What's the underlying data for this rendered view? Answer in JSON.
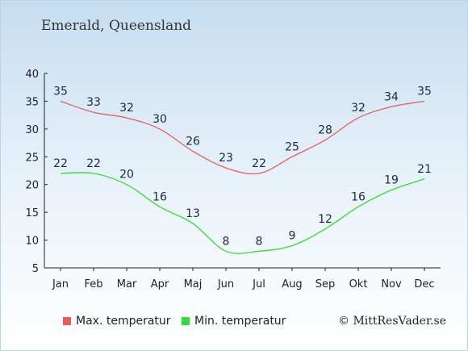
{
  "header": {
    "title": "Emerald, Queensland"
  },
  "chart_data": {
    "type": "line",
    "categories": [
      "Jan",
      "Feb",
      "Mar",
      "Apr",
      "Maj",
      "Jun",
      "Jul",
      "Aug",
      "Sep",
      "Okt",
      "Nov",
      "Dec"
    ],
    "series": [
      {
        "name": "Max. temperatur",
        "color": "#e85c5c",
        "values": [
          35,
          33,
          32,
          30,
          26,
          23,
          22,
          25,
          28,
          32,
          34,
          35
        ]
      },
      {
        "name": "Min. temperatur",
        "color": "#33dd33",
        "values": [
          22,
          22,
          20,
          16,
          13,
          8,
          8,
          9,
          12,
          16,
          19,
          21
        ]
      }
    ],
    "yticks": [
      5,
      10,
      15,
      20,
      25,
      30,
      35,
      40
    ],
    "ylim": [
      5,
      40
    ],
    "grid": false,
    "legend_position": "bottom-left"
  },
  "footer": {
    "credit": "© MittResVader.se"
  }
}
